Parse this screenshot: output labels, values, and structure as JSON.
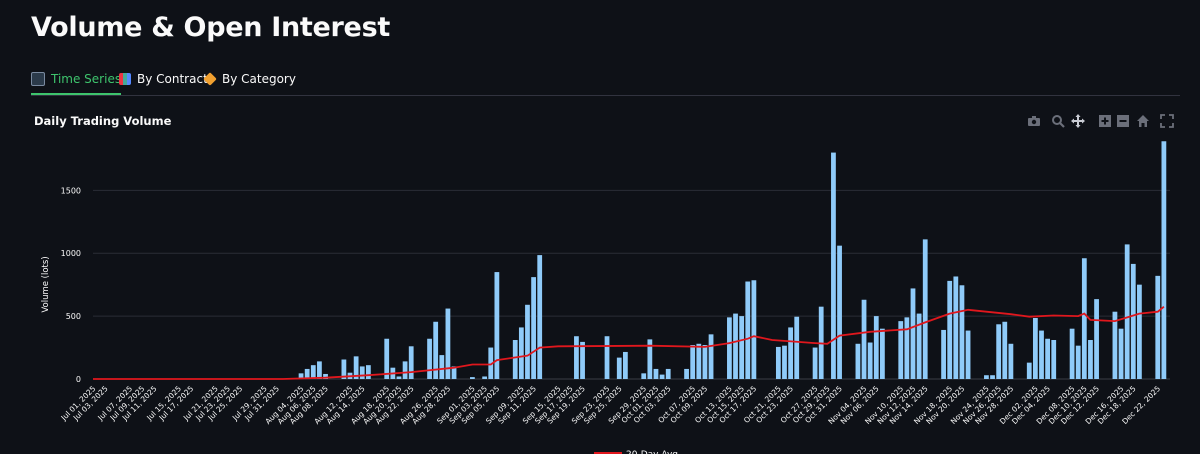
{
  "page": {
    "title": "Volume & Open Interest"
  },
  "tabs": [
    {
      "label": "Time Series",
      "active": true
    },
    {
      "label": "By Contract",
      "active": false
    },
    {
      "label": "By Category",
      "active": false
    }
  ],
  "colors": {
    "bars": "#8fcbf9",
    "line": "#e0171d",
    "accent": "#3ec46d",
    "background": "#0e1117"
  },
  "modebar": [
    "camera-icon",
    "zoom-icon",
    "pan-icon",
    "zoom-in-icon",
    "zoom-out-icon",
    "home-icon",
    "autoscale-icon"
  ],
  "legend": {
    "line_label": "20-Day Avg"
  },
  "chart_data": {
    "type": "bar",
    "title": "Daily Trading Volume",
    "ylabel": "Volume (lots)",
    "xlabel": "",
    "ylim": [
      0,
      1900
    ],
    "yticks": [
      0,
      500,
      1000,
      1500
    ],
    "grid": true,
    "x_start": "2025-07-01",
    "x_end": "2025-12-24",
    "xtick_labels": [
      "Jul 01, 2025",
      "Jul 03, 2025",
      "Jul 07, 2025",
      "Jul 09, 2025",
      "Jul 11, 2025",
      "Jul 15, 2025",
      "Jul 17, 2025",
      "Jul 21, 2025",
      "Jul 23, 2025",
      "Jul 25, 2025",
      "Jul 29, 2025",
      "Jul 31, 2025",
      "Aug 04, 2025",
      "Aug 06, 2025",
      "Aug 08, 2025",
      "Aug 12, 2025",
      "Aug 14, 2025",
      "Aug 18, 2025",
      "Aug 20, 2025",
      "Aug 22, 2025",
      "Aug 26, 2025",
      "Aug 28, 2025",
      "Sep 01, 2025",
      "Sep 03, 2025",
      "Sep 05, 2025",
      "Sep 09, 2025",
      "Sep 11, 2025",
      "Sep 15, 2025",
      "Sep 17, 2025",
      "Sep 19, 2025",
      "Sep 23, 2025",
      "Sep 25, 2025",
      "Sep 29, 2025",
      "Oct 01, 2025",
      "Oct 03, 2025",
      "Oct 07, 2025",
      "Oct 09, 2025",
      "Oct 13, 2025",
      "Oct 15, 2025",
      "Oct 17, 2025",
      "Oct 21, 2025",
      "Oct 23, 2025",
      "Oct 27, 2025",
      "Oct 29, 2025",
      "Oct 31, 2025",
      "Nov 04, 2025",
      "Nov 06, 2025",
      "Nov 10, 2025",
      "Nov 12, 2025",
      "Nov 14, 2025",
      "Nov 18, 2025",
      "Nov 20, 2025",
      "Nov 24, 2025",
      "Nov 26, 2025",
      "Nov 28, 2025",
      "Dec 02, 2025",
      "Dec 04, 2025",
      "Dec 08, 2025",
      "Dec 10, 2025",
      "Dec 12, 2025",
      "Dec 16, 2025",
      "Dec 18, 2025",
      "Dec 22, 2025"
    ],
    "series": [
      {
        "name": "Daily Volume",
        "type": "bar",
        "points": [
          [
            "2025-08-04",
            45
          ],
          [
            "2025-08-05",
            80
          ],
          [
            "2025-08-06",
            110
          ],
          [
            "2025-08-07",
            140
          ],
          [
            "2025-08-08",
            40
          ],
          [
            "2025-08-11",
            155
          ],
          [
            "2025-08-12",
            50
          ],
          [
            "2025-08-13",
            180
          ],
          [
            "2025-08-14",
            100
          ],
          [
            "2025-08-15",
            110
          ],
          [
            "2025-08-18",
            320
          ],
          [
            "2025-08-19",
            90
          ],
          [
            "2025-08-20",
            20
          ],
          [
            "2025-08-21",
            140
          ],
          [
            "2025-08-22",
            260
          ],
          [
            "2025-08-25",
            320
          ],
          [
            "2025-08-26",
            455
          ],
          [
            "2025-08-27",
            190
          ],
          [
            "2025-08-28",
            560
          ],
          [
            "2025-08-29",
            100
          ],
          [
            "2025-09-01",
            15
          ],
          [
            "2025-09-03",
            20
          ],
          [
            "2025-09-04",
            250
          ],
          [
            "2025-09-05",
            850
          ],
          [
            "2025-09-08",
            310
          ],
          [
            "2025-09-09",
            410
          ],
          [
            "2025-09-10",
            590
          ],
          [
            "2025-09-11",
            810
          ],
          [
            "2025-09-12",
            985
          ],
          [
            "2025-09-18",
            340
          ],
          [
            "2025-09-19",
            295
          ],
          [
            "2025-09-23",
            340
          ],
          [
            "2025-09-25",
            170
          ],
          [
            "2025-09-26",
            215
          ],
          [
            "2025-09-29",
            45
          ],
          [
            "2025-09-30",
            315
          ],
          [
            "2025-10-01",
            80
          ],
          [
            "2025-10-02",
            35
          ],
          [
            "2025-10-03",
            80
          ],
          [
            "2025-10-06",
            80
          ],
          [
            "2025-10-07",
            270
          ],
          [
            "2025-10-08",
            280
          ],
          [
            "2025-10-09",
            270
          ],
          [
            "2025-10-10",
            355
          ],
          [
            "2025-10-13",
            490
          ],
          [
            "2025-10-14",
            520
          ],
          [
            "2025-10-15",
            500
          ],
          [
            "2025-10-16",
            775
          ],
          [
            "2025-10-17",
            785
          ],
          [
            "2025-10-21",
            255
          ],
          [
            "2025-10-22",
            265
          ],
          [
            "2025-10-23",
            410
          ],
          [
            "2025-10-24",
            495
          ],
          [
            "2025-10-27",
            250
          ],
          [
            "2025-10-28",
            575
          ],
          [
            "2025-10-30",
            1800
          ],
          [
            "2025-10-31",
            1060
          ],
          [
            "2025-11-03",
            280
          ],
          [
            "2025-11-04",
            630
          ],
          [
            "2025-11-05",
            290
          ],
          [
            "2025-11-06",
            500
          ],
          [
            "2025-11-07",
            400
          ],
          [
            "2025-11-10",
            460
          ],
          [
            "2025-11-11",
            490
          ],
          [
            "2025-11-12",
            720
          ],
          [
            "2025-11-13",
            520
          ],
          [
            "2025-11-14",
            1110
          ],
          [
            "2025-11-17",
            390
          ],
          [
            "2025-11-18",
            780
          ],
          [
            "2025-11-19",
            815
          ],
          [
            "2025-11-20",
            745
          ],
          [
            "2025-11-21",
            385
          ],
          [
            "2025-11-24",
            30
          ],
          [
            "2025-11-25",
            30
          ],
          [
            "2025-11-26",
            435
          ],
          [
            "2025-11-27",
            455
          ],
          [
            "2025-11-28",
            280
          ],
          [
            "2025-12-01",
            130
          ],
          [
            "2025-12-02",
            485
          ],
          [
            "2025-12-03",
            385
          ],
          [
            "2025-12-04",
            320
          ],
          [
            "2025-12-05",
            310
          ],
          [
            "2025-12-08",
            400
          ],
          [
            "2025-12-09",
            265
          ],
          [
            "2025-12-10",
            960
          ],
          [
            "2025-12-11",
            310
          ],
          [
            "2025-12-12",
            635
          ],
          [
            "2025-12-15",
            535
          ],
          [
            "2025-12-16",
            400
          ],
          [
            "2025-12-17",
            1070
          ],
          [
            "2025-12-18",
            915
          ],
          [
            "2025-12-19",
            750
          ],
          [
            "2025-12-22",
            820
          ],
          [
            "2025-12-23",
            1890
          ]
        ]
      },
      {
        "name": "20-Day Avg",
        "type": "line",
        "points": [
          [
            "2025-07-01",
            0
          ],
          [
            "2025-08-01",
            0
          ],
          [
            "2025-08-08",
            10
          ],
          [
            "2025-08-15",
            30
          ],
          [
            "2025-08-22",
            55
          ],
          [
            "2025-08-29",
            90
          ],
          [
            "2025-09-01",
            115
          ],
          [
            "2025-09-04",
            115
          ],
          [
            "2025-09-05",
            150
          ],
          [
            "2025-09-10",
            185
          ],
          [
            "2025-09-12",
            250
          ],
          [
            "2025-09-15",
            260
          ],
          [
            "2025-09-30",
            265
          ],
          [
            "2025-10-09",
            255
          ],
          [
            "2025-10-13",
            285
          ],
          [
            "2025-10-16",
            320
          ],
          [
            "2025-10-17",
            340
          ],
          [
            "2025-10-20",
            310
          ],
          [
            "2025-10-27",
            285
          ],
          [
            "2025-10-29",
            280
          ],
          [
            "2025-10-31",
            345
          ],
          [
            "2025-11-05",
            375
          ],
          [
            "2025-11-11",
            395
          ],
          [
            "2025-11-14",
            450
          ],
          [
            "2025-11-18",
            520
          ],
          [
            "2025-11-21",
            550
          ],
          [
            "2025-11-24",
            535
          ],
          [
            "2025-11-28",
            515
          ],
          [
            "2025-12-01",
            495
          ],
          [
            "2025-12-05",
            505
          ],
          [
            "2025-12-09",
            500
          ],
          [
            "2025-12-10",
            520
          ],
          [
            "2025-12-11",
            470
          ],
          [
            "2025-12-15",
            460
          ],
          [
            "2025-12-17",
            490
          ],
          [
            "2025-12-19",
            520
          ],
          [
            "2025-12-22",
            535
          ],
          [
            "2025-12-23",
            575
          ]
        ]
      }
    ]
  }
}
